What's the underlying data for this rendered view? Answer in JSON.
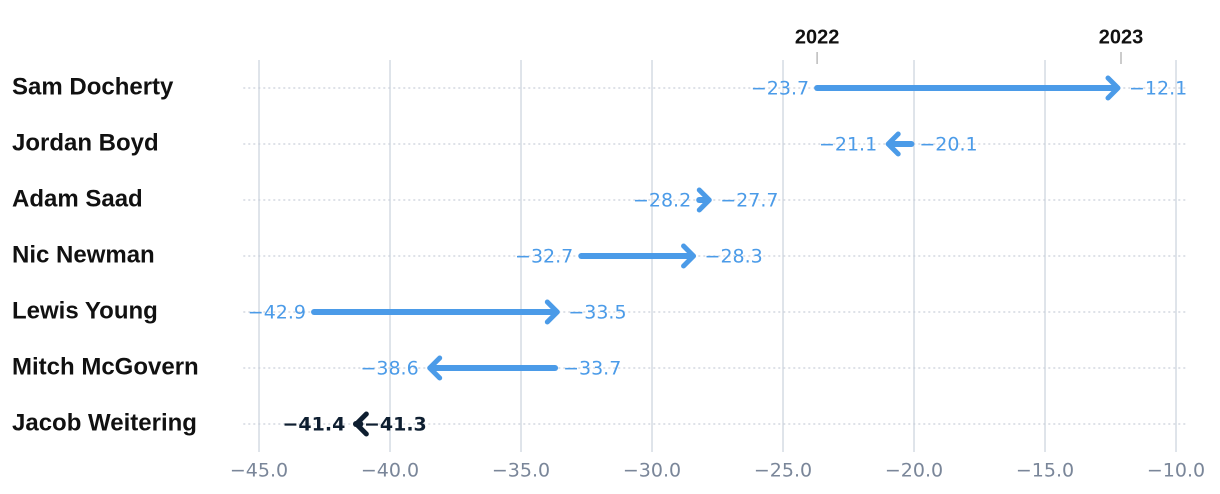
{
  "chart_data": {
    "type": "arrow",
    "categories": [
      "Sam Docherty",
      "Jordan Boyd",
      "Adam Saad",
      "Nic Newman",
      "Lewis Young",
      "Mitch McGovern",
      "Jacob Weitering"
    ],
    "series": [
      {
        "name": "2022",
        "values": [
          -23.7,
          -20.1,
          -28.2,
          -32.7,
          -42.9,
          -33.7,
          -41.3
        ],
        "value_labels": [
          "−23.7",
          "−20.1",
          "−28.2",
          "−32.7",
          "−42.9",
          "−33.7",
          "−41.3"
        ]
      },
      {
        "name": "2023",
        "values": [
          -12.1,
          -21.1,
          -27.7,
          -28.3,
          -33.5,
          -38.6,
          -41.4
        ],
        "value_labels": [
          "−12.1",
          "−21.1",
          "−27.7",
          "−28.3",
          "−33.5",
          "−38.6",
          "−41.4"
        ]
      }
    ],
    "colors": [
      "#4b9be8",
      "#4b9be8",
      "#4b9be8",
      "#4b9be8",
      "#4b9be8",
      "#4b9be8",
      "#0e1e30"
    ],
    "xlim": [
      -45.6,
      -9.6
    ],
    "xticks": [
      {
        "value": -45,
        "label": "−45.0"
      },
      {
        "value": -40,
        "label": "−40.0"
      },
      {
        "value": -35,
        "label": "−35.0"
      },
      {
        "value": -30,
        "label": "−30.0"
      },
      {
        "value": -25,
        "label": "−25.0"
      },
      {
        "value": -20,
        "label": "−20.0"
      },
      {
        "value": -15,
        "label": "−15.0"
      },
      {
        "value": -10,
        "label": "−10.0"
      }
    ],
    "grid": true
  }
}
